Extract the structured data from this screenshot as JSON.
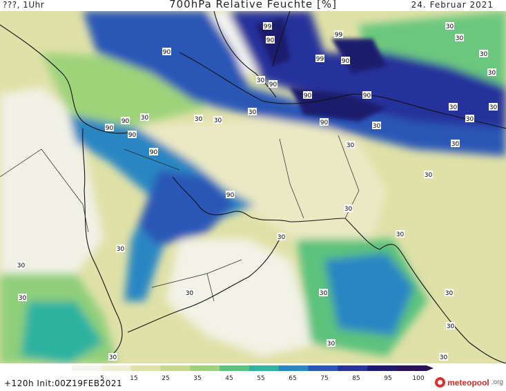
{
  "header": {
    "top_left": "???, 1Uhr",
    "title": "700hPa Relative Feuchte [%]",
    "date": "24. Februar 2021"
  },
  "footer": {
    "init": "+120h Init:00Z19FEB2021",
    "brand": "meteopool",
    "brand_suffix": ".org"
  },
  "colorbar": {
    "tick_labels": [
      "5",
      "15",
      "25",
      "35",
      "45",
      "55",
      "65",
      "75",
      "85",
      "95",
      "100"
    ],
    "colors": [
      "#f4f4ee",
      "#eeeed0",
      "#dfe1a8",
      "#c6d98a",
      "#9ed37a",
      "#5cc27c",
      "#2fb2a0",
      "#2a86c2",
      "#2a56b6",
      "#27339b",
      "#1c1a6e",
      "#2a0f5a"
    ]
  },
  "contour_labels": [
    "99",
    "90",
    "99",
    "90",
    "90",
    "99",
    "90",
    "90",
    "90",
    "90",
    "90",
    "90",
    "90",
    "90",
    "90",
    "30",
    "30",
    "30",
    "30",
    "30",
    "30",
    "30",
    "30",
    "30",
    "30",
    "30",
    "30",
    "30",
    "30",
    "30",
    "30",
    "30",
    "30",
    "30",
    "30",
    "30",
    "30",
    "30",
    "30",
    "30",
    "30",
    "30",
    "30",
    "30"
  ]
}
